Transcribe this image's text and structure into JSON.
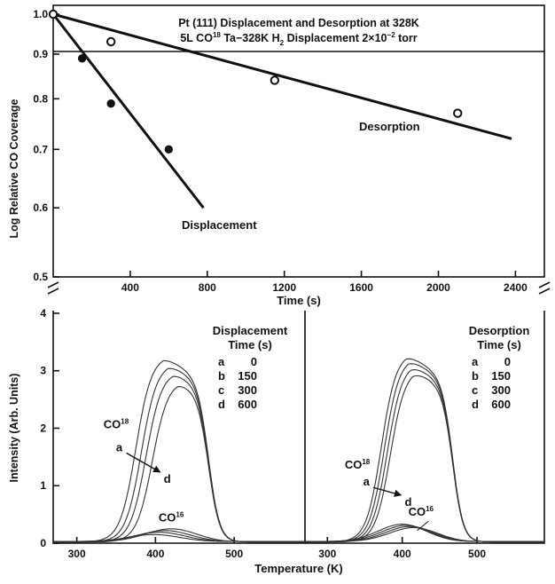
{
  "chart_data": [
    {
      "type": "scatter",
      "title": "Pt (111) Displacement and Desorption at 328K",
      "subtitle": "5L CO18 Ta-328K H2 Displacement 2×10-2 torr",
      "title_line1": "Pt (111) Displacement and Desorption at 328K",
      "title_line2_a": "5L CO",
      "title_line2_sup": "18",
      "title_line2_b": " Ta−328K H",
      "title_line2_sub": "2",
      "title_line2_c": " Displacement 2×10",
      "title_line2_sup2": "−2",
      "title_line2_d": " torr",
      "xlabel": "Time (s)",
      "ylabel": "Log Relative CO Coverage",
      "xlim": [
        0,
        2550
      ],
      "ylim": [
        0.5,
        1.0
      ],
      "y_scale": "log",
      "xticks": [
        400,
        800,
        1200,
        1600,
        2000,
        2400
      ],
      "yticks": [
        0.5,
        0.6,
        0.7,
        0.8,
        0.9,
        1.0
      ],
      "xtick_labels": [
        "400",
        "800",
        "1200",
        "1600",
        "2000",
        "2400"
      ],
      "ytick_labels": [
        "0.5",
        "0.6",
        "0.7",
        "0.8",
        "0.9",
        "1.0"
      ],
      "series": [
        {
          "name": "Displacement",
          "marker": "filled-circle",
          "points": [
            [
              0,
              1.0
            ],
            [
              150,
              0.89
            ],
            [
              300,
              0.79
            ],
            [
              600,
              0.7
            ]
          ],
          "fit": [
            [
              0,
              1.0
            ],
            [
              780,
              0.6
            ]
          ]
        },
        {
          "name": "Desorption",
          "marker": "open-circle",
          "points": [
            [
              0,
              1.0
            ],
            [
              300,
              0.93
            ],
            [
              1150,
              0.84
            ],
            [
              2100,
              0.77
            ]
          ],
          "fit": [
            [
              0,
              1.0
            ],
            [
              2380,
              0.72
            ]
          ]
        }
      ]
    },
    {
      "type": "line",
      "panel": "Displacement",
      "xlabel": "Temperature (K)",
      "ylabel": "Intensity (Arb. Units)",
      "xlim": [
        270,
        590
      ],
      "ylim": [
        0,
        4.2
      ],
      "xticks": [
        300,
        400,
        500
      ],
      "yticks": [
        0,
        1,
        2,
        3,
        4
      ],
      "xtick_labels": [
        "300",
        "400",
        "500"
      ],
      "ytick_labels": [
        "0",
        "1",
        "2",
        "3",
        "4"
      ],
      "legend_title_line1": "Displacement",
      "legend_title_line2": "Time (s)",
      "legend": [
        {
          "key": "a",
          "time": "0"
        },
        {
          "key": "b",
          "time": "150"
        },
        {
          "key": "c",
          "time": "300"
        },
        {
          "key": "d",
          "time": "600"
        }
      ],
      "annotations": [
        {
          "text": "CO",
          "sup": "18",
          "x": 350,
          "y": 2.0
        },
        {
          "text": "a",
          "x": 354,
          "y": 1.6
        },
        {
          "text": "d",
          "x": 415,
          "y": 1.05
        },
        {
          "text": "CO",
          "sup": "16",
          "x": 420,
          "y": 0.38
        }
      ],
      "series": [
        {
          "name": "a",
          "isotope": "CO18",
          "peak_T": 410,
          "peak_I": 3.25,
          "rise_half_T": 375
        },
        {
          "name": "b",
          "isotope": "CO18",
          "peak_T": 416,
          "peak_I": 3.12,
          "rise_half_T": 382
        },
        {
          "name": "c",
          "isotope": "CO18",
          "peak_T": 422,
          "peak_I": 2.98,
          "rise_half_T": 388
        },
        {
          "name": "d",
          "isotope": "CO18",
          "peak_T": 428,
          "peak_I": 2.82,
          "rise_half_T": 396
        },
        {
          "name": "a",
          "isotope": "CO16",
          "peak_T": 398,
          "peak_I": 0.12
        },
        {
          "name": "b",
          "isotope": "CO16",
          "peak_T": 405,
          "peak_I": 0.16
        },
        {
          "name": "c",
          "isotope": "CO16",
          "peak_T": 412,
          "peak_I": 0.19
        },
        {
          "name": "d",
          "isotope": "CO16",
          "peak_T": 420,
          "peak_I": 0.22
        }
      ]
    },
    {
      "type": "line",
      "panel": "Desorption",
      "xlabel": "Temperature (K)",
      "xlim": [
        270,
        590
      ],
      "ylim": [
        0,
        4.2
      ],
      "xticks": [
        300,
        400,
        500
      ],
      "xtick_labels": [
        "300",
        "400",
        "500"
      ],
      "legend_title_line1": "Desorption",
      "legend_title_line2": "Time (s)",
      "legend": [
        {
          "key": "a",
          "time": "0"
        },
        {
          "key": "b",
          "time": "150"
        },
        {
          "key": "c",
          "time": "300"
        },
        {
          "key": "d",
          "time": "600"
        }
      ],
      "annotations": [
        {
          "text": "CO",
          "sup": "18",
          "x": 340,
          "y": 1.3
        },
        {
          "text": "a",
          "x": 352,
          "y": 1.0
        },
        {
          "text": "d",
          "x": 408,
          "y": 0.65
        },
        {
          "text": "CO",
          "sup": "16",
          "x": 425,
          "y": 0.48
        }
      ],
      "series": [
        {
          "name": "a",
          "isotope": "CO18",
          "peak_T": 405,
          "peak_I": 3.3,
          "rise_half_T": 372
        },
        {
          "name": "b",
          "isotope": "CO18",
          "peak_T": 408,
          "peak_I": 3.22,
          "rise_half_T": 376
        },
        {
          "name": "c",
          "isotope": "CO18",
          "peak_T": 411,
          "peak_I": 3.12,
          "rise_half_T": 380
        },
        {
          "name": "d",
          "isotope": "CO18",
          "peak_T": 414,
          "peak_I": 3.02,
          "rise_half_T": 384
        },
        {
          "name": "a",
          "isotope": "CO16",
          "peak_T": 400,
          "peak_I": 0.3
        },
        {
          "name": "b",
          "isotope": "CO16",
          "peak_T": 405,
          "peak_I": 0.28
        },
        {
          "name": "c",
          "isotope": "CO16",
          "peak_T": 410,
          "peak_I": 0.26
        },
        {
          "name": "d",
          "isotope": "CO16",
          "peak_T": 415,
          "peak_I": 0.24
        }
      ]
    }
  ]
}
